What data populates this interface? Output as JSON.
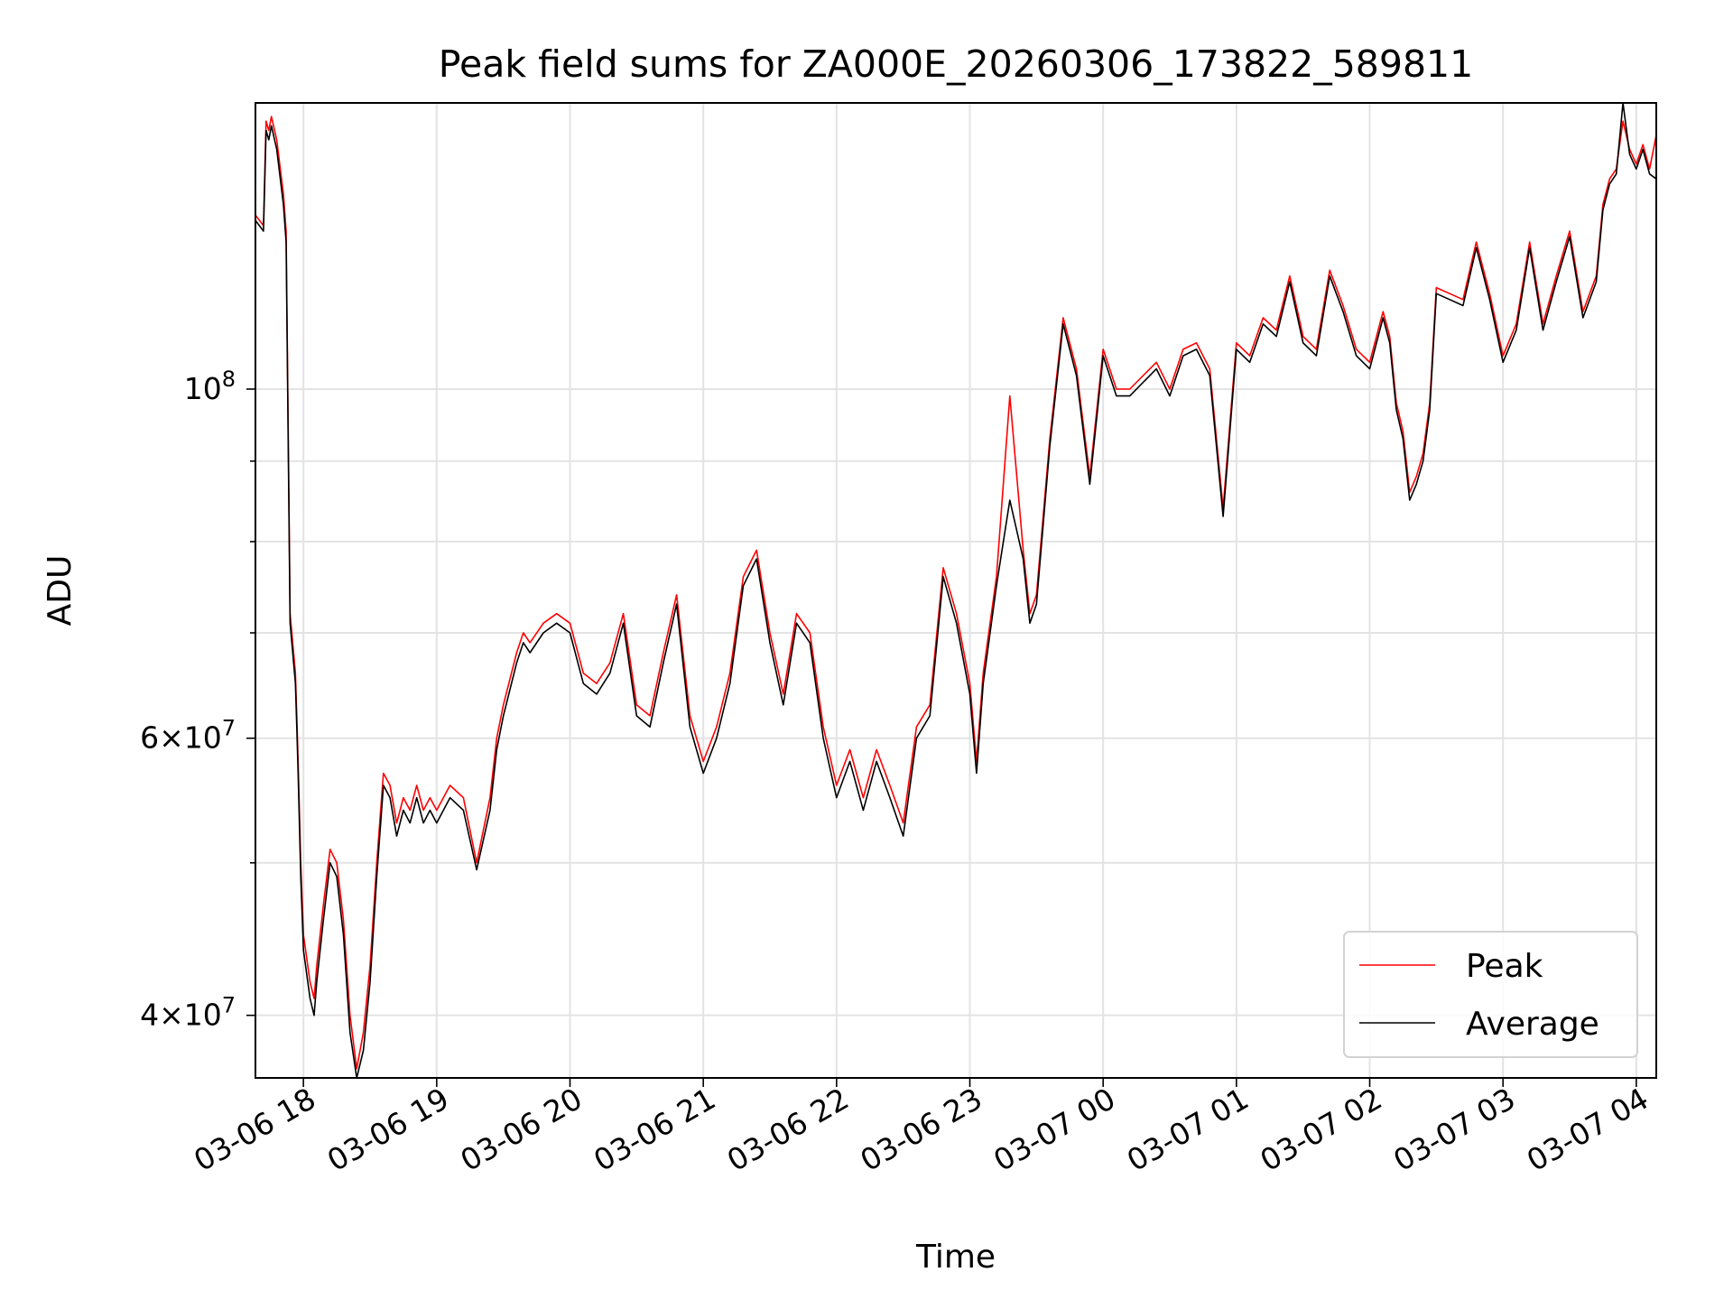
{
  "chart_data": {
    "type": "line",
    "title": "Peak field sums for ZA000E_20260306_173822_589811",
    "xlabel": "Time",
    "ylabel": "ADU",
    "yscale": "log",
    "ylim": [
      36500000,
      152000000
    ],
    "xlim_hours": [
      17.64,
      28.15
    ],
    "x_ticks": [
      {
        "hour": 18,
        "label": "03-06 18"
      },
      {
        "hour": 19,
        "label": "03-06 19"
      },
      {
        "hour": 20,
        "label": "03-06 20"
      },
      {
        "hour": 21,
        "label": "03-06 21"
      },
      {
        "hour": 22,
        "label": "03-06 22"
      },
      {
        "hour": 23,
        "label": "03-06 23"
      },
      {
        "hour": 24,
        "label": "03-07 00"
      },
      {
        "hour": 25,
        "label": "03-07 01"
      },
      {
        "hour": 26,
        "label": "03-07 02"
      },
      {
        "hour": 27,
        "label": "03-07 03"
      },
      {
        "hour": 28,
        "label": "03-07 04"
      }
    ],
    "y_major_ticks": [
      {
        "value": 40000000,
        "mantissa": "4",
        "base": "10",
        "exp": "7"
      },
      {
        "value": 60000000,
        "mantissa": "6",
        "base": "10",
        "exp": "7"
      },
      {
        "value": 100000000,
        "mantissa": "",
        "base": "10",
        "exp": "8"
      }
    ],
    "y_minor_values": [
      50000000,
      70000000,
      80000000,
      90000000
    ],
    "colors": {
      "peak": "#ff0000",
      "average": "#000000",
      "grid": "#e3e3e3"
    },
    "legend_position": "lower-right",
    "series": [
      {
        "name": "Peak",
        "color": "#ff0000",
        "hours": [
          17.64,
          17.7,
          17.72,
          17.74,
          17.76,
          17.8,
          17.85,
          17.87,
          17.9,
          17.92,
          17.94,
          17.95,
          17.96,
          17.97,
          17.98,
          18.0,
          18.05,
          18.08,
          18.1,
          18.15,
          18.2,
          18.25,
          18.3,
          18.35,
          18.4,
          18.45,
          18.5,
          18.55,
          18.6,
          18.65,
          18.7,
          18.75,
          18.8,
          18.85,
          18.9,
          18.95,
          19.0,
          19.1,
          19.2,
          19.3,
          19.4,
          19.45,
          19.5,
          19.6,
          19.65,
          19.7,
          19.8,
          19.9,
          20.0,
          20.1,
          20.2,
          20.3,
          20.4,
          20.5,
          20.6,
          20.7,
          20.8,
          20.9,
          21.0,
          21.1,
          21.2,
          21.3,
          21.4,
          21.5,
          21.6,
          21.7,
          21.8,
          21.9,
          22.0,
          22.1,
          22.2,
          22.3,
          22.4,
          22.5,
          22.6,
          22.7,
          22.8,
          22.9,
          23.0,
          23.05,
          23.1,
          23.2,
          23.3,
          23.4,
          23.45,
          23.5,
          23.6,
          23.7,
          23.8,
          23.9,
          24.0,
          24.1,
          24.2,
          24.3,
          24.4,
          24.5,
          24.6,
          24.7,
          24.8,
          24.9,
          25.0,
          25.1,
          25.2,
          25.3,
          25.4,
          25.5,
          25.6,
          25.7,
          25.8,
          25.9,
          26.0,
          26.1,
          26.15,
          26.2,
          26.25,
          26.3,
          26.35,
          26.4,
          26.45,
          26.5,
          26.6,
          26.7,
          26.8,
          26.9,
          27.0,
          27.1,
          27.2,
          27.3,
          27.4,
          27.5,
          27.6,
          27.7,
          27.75,
          27.8,
          27.85,
          27.9,
          27.95,
          28.0,
          28.05,
          28.1,
          28.15
        ],
        "values": [
          129000000,
          127000000,
          148000000,
          146000000,
          149000000,
          144000000,
          133000000,
          126000000,
          72000000,
          69000000,
          66000000,
          62000000,
          58000000,
          54000000,
          50000000,
          45000000,
          42000000,
          41000000,
          43000000,
          47000000,
          51000000,
          50000000,
          46000000,
          40000000,
          37000000,
          39000000,
          43000000,
          50000000,
          57000000,
          56000000,
          53000000,
          55000000,
          54000000,
          56000000,
          54000000,
          55000000,
          54000000,
          56000000,
          55000000,
          50000000,
          55000000,
          60000000,
          63000000,
          68000000,
          70000000,
          69000000,
          71000000,
          72000000,
          71000000,
          66000000,
          65000000,
          67000000,
          72000000,
          63000000,
          62000000,
          68000000,
          74000000,
          62000000,
          58000000,
          61000000,
          66000000,
          76000000,
          79000000,
          70000000,
          64000000,
          72000000,
          70000000,
          61000000,
          56000000,
          59000000,
          55000000,
          59000000,
          56000000,
          53000000,
          61000000,
          63000000,
          77000000,
          72000000,
          65000000,
          58000000,
          66000000,
          76000000,
          99000000,
          79000000,
          72000000,
          74000000,
          93000000,
          111000000,
          103000000,
          88000000,
          106000000,
          100000000,
          100000000,
          102000000,
          104000000,
          100000000,
          106000000,
          107000000,
          103000000,
          84000000,
          107000000,
          105000000,
          111000000,
          109000000,
          118000000,
          108000000,
          106000000,
          119000000,
          113000000,
          106000000,
          104000000,
          112000000,
          108000000,
          98000000,
          94000000,
          86000000,
          88000000,
          91000000,
          98000000,
          116000000,
          115000000,
          114000000,
          124000000,
          115000000,
          105000000,
          110000000,
          124000000,
          110000000,
          118000000,
          126000000,
          112000000,
          118000000,
          131000000,
          136000000,
          138000000,
          148000000,
          142000000,
          139000000,
          143000000,
          138000000,
          145000000
        ]
      },
      {
        "name": "Average",
        "color": "#000000",
        "hours": [
          17.64,
          17.7,
          17.72,
          17.74,
          17.76,
          17.8,
          17.85,
          17.87,
          17.9,
          17.92,
          17.94,
          17.95,
          17.96,
          17.97,
          17.98,
          18.0,
          18.05,
          18.08,
          18.1,
          18.15,
          18.2,
          18.25,
          18.3,
          18.35,
          18.4,
          18.45,
          18.5,
          18.55,
          18.6,
          18.65,
          18.7,
          18.75,
          18.8,
          18.85,
          18.9,
          18.95,
          19.0,
          19.1,
          19.2,
          19.3,
          19.4,
          19.45,
          19.5,
          19.6,
          19.65,
          19.7,
          19.8,
          19.9,
          20.0,
          20.1,
          20.2,
          20.3,
          20.4,
          20.5,
          20.6,
          20.7,
          20.8,
          20.9,
          21.0,
          21.1,
          21.2,
          21.3,
          21.4,
          21.5,
          21.6,
          21.7,
          21.8,
          21.9,
          22.0,
          22.1,
          22.2,
          22.3,
          22.4,
          22.5,
          22.6,
          22.7,
          22.8,
          22.9,
          23.0,
          23.05,
          23.1,
          23.2,
          23.3,
          23.4,
          23.45,
          23.5,
          23.6,
          23.7,
          23.8,
          23.9,
          24.0,
          24.1,
          24.2,
          24.3,
          24.4,
          24.5,
          24.6,
          24.7,
          24.8,
          24.9,
          25.0,
          25.1,
          25.2,
          25.3,
          25.4,
          25.5,
          25.6,
          25.7,
          25.8,
          25.9,
          26.0,
          26.1,
          26.15,
          26.2,
          26.25,
          26.3,
          26.35,
          26.4,
          26.45,
          26.5,
          26.6,
          26.7,
          26.8,
          26.9,
          27.0,
          27.1,
          27.2,
          27.3,
          27.4,
          27.5,
          27.6,
          27.7,
          27.75,
          27.8,
          27.85,
          27.9,
          27.95,
          28.0,
          28.05,
          28.1,
          28.15
        ],
        "values": [
          128000000,
          126000000,
          146000000,
          144000000,
          147000000,
          142000000,
          131000000,
          124000000,
          71000000,
          68000000,
          65000000,
          61000000,
          57000000,
          53000000,
          49000000,
          44000000,
          41000000,
          40000000,
          42000000,
          46000000,
          50000000,
          49000000,
          45000000,
          39000000,
          36500000,
          38000000,
          42000000,
          49000000,
          56000000,
          55000000,
          52000000,
          54000000,
          53000000,
          55000000,
          53000000,
          54000000,
          53000000,
          55000000,
          54000000,
          49500000,
          54000000,
          59000000,
          62000000,
          67000000,
          69000000,
          68000000,
          70000000,
          71000000,
          70000000,
          65000000,
          64000000,
          66000000,
          71000000,
          62000000,
          61000000,
          67000000,
          73000000,
          61000000,
          57000000,
          60000000,
          65000000,
          75000000,
          78000000,
          69000000,
          63000000,
          71000000,
          69000000,
          60000000,
          55000000,
          58000000,
          54000000,
          58000000,
          55000000,
          52000000,
          60000000,
          62000000,
          76000000,
          71000000,
          64000000,
          57000000,
          65000000,
          75000000,
          85000000,
          78000000,
          71000000,
          73000000,
          92000000,
          110000000,
          102000000,
          87000000,
          105000000,
          99000000,
          99000000,
          101000000,
          103000000,
          99000000,
          105000000,
          106000000,
          102000000,
          83000000,
          106000000,
          104000000,
          110000000,
          108000000,
          117000000,
          107000000,
          105000000,
          118000000,
          112000000,
          105000000,
          103000000,
          111000000,
          107000000,
          97000000,
          93000000,
          85000000,
          87000000,
          90000000,
          97000000,
          115000000,
          114000000,
          113000000,
          123000000,
          114000000,
          104000000,
          109000000,
          123000000,
          109000000,
          117000000,
          125000000,
          111000000,
          117000000,
          130000000,
          135000000,
          137000000,
          152000000,
          141000000,
          138000000,
          142000000,
          137000000,
          136000000
        ]
      }
    ]
  }
}
